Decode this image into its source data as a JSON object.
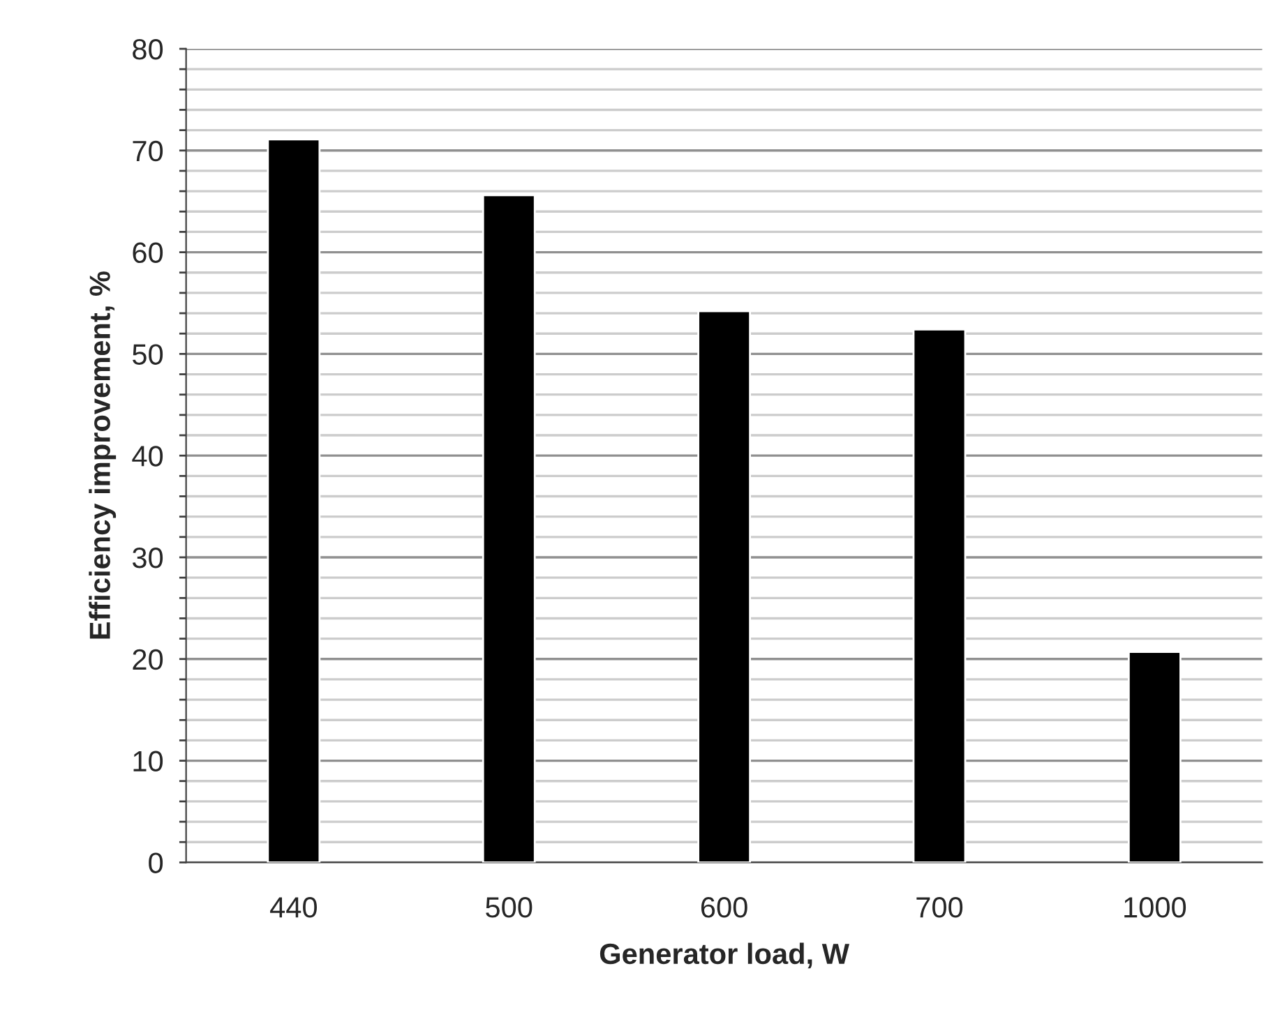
{
  "chart_data": {
    "type": "bar",
    "xlabel": "Generator load, W",
    "ylabel": "Efficiency improvement, %",
    "categories": [
      "440",
      "500",
      "600",
      "700",
      "1000"
    ],
    "series": [
      {
        "color": "#000000",
        "values": [
          71.1,
          65.6,
          54.2,
          52.4,
          20.7
        ]
      }
    ],
    "ylim": [
      0,
      80
    ],
    "yticks": [
      0,
      {
        "value": 2,
        "label": null
      },
      {
        "value": 4,
        "label": null
      },
      {
        "value": 6,
        "label": null
      },
      {
        "value": 8,
        "label": null
      },
      10,
      {
        "value": 12,
        "label": null
      },
      {
        "value": 14,
        "label": null
      },
      {
        "value": 16,
        "label": null
      },
      {
        "value": 18,
        "label": null
      },
      20,
      {
        "value": 22,
        "label": null
      },
      {
        "value": 24,
        "label": null
      },
      {
        "value": 26,
        "label": null
      },
      {
        "value": 28,
        "label": null
      },
      30,
      {
        "value": 32,
        "label": null
      },
      {
        "value": 34,
        "label": null
      },
      {
        "value": 36,
        "label": null
      },
      {
        "value": 38,
        "label": null
      },
      40,
      {
        "value": 42,
        "label": null
      },
      {
        "value": 44,
        "label": null
      },
      {
        "value": 46,
        "label": null
      },
      {
        "value": 48,
        "label": null
      },
      50,
      {
        "value": 52,
        "label": null
      },
      {
        "value": 54,
        "label": null
      },
      {
        "value": 56,
        "label": null
      },
      {
        "value": 58,
        "label": null
      },
      60,
      {
        "value": 62,
        "label": null
      },
      {
        "value": 64,
        "label": null
      },
      {
        "value": 66,
        "label": null
      },
      {
        "value": 68,
        "label": null
      },
      70,
      {
        "value": 72,
        "label": null
      },
      {
        "value": 74,
        "label": null
      },
      {
        "value": 76,
        "label": null
      },
      {
        "value": 78,
        "label": null
      },
      80
    ],
    "grid": "y"
  }
}
